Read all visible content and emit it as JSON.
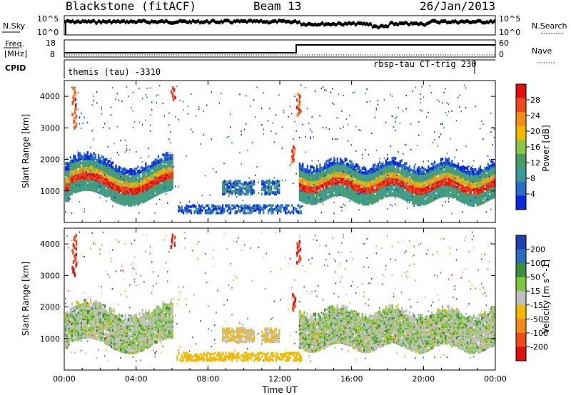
{
  "header": {
    "station": "Blackstone (fitACF)",
    "beam": "Beam 13",
    "date": "26/Jan/2013"
  },
  "nsky": {
    "label": "N.Sky",
    "tick_top": "10^5",
    "tick_bottom": "10^0",
    "right_label": "N.Search",
    "right_tick_top": "10^5",
    "right_tick_bottom": "10^0"
  },
  "freq": {
    "label_line1": "Freq.",
    "label_line2": "[MHz]",
    "tick_top": "18",
    "tick_bottom": "8",
    "right_label": "Nave",
    "right_tick_top": "60",
    "right_tick_bottom": "0"
  },
  "cpid": {
    "label": "CPID",
    "mode_left": "themis (tau) -3310",
    "mode_right": "rbsp-tau CT-trig 230"
  },
  "colors": {
    "power_scale": [
      "#0a2ae0",
      "#2b6cc4",
      "#3a9a9a",
      "#4a9e62",
      "#8bc640",
      "#f2b800",
      "#f58a1c",
      "#ef4a1e",
      "#e01010"
    ],
    "velocity_scale": [
      "#e01010",
      "#ef4a1e",
      "#f58a1c",
      "#f2b800",
      "#c0c0c0",
      "#7cc83a",
      "#3b8e3a",
      "#2b6cc4",
      "#1f3fb0"
    ]
  },
  "chart_data": [
    {
      "type": "heatmap",
      "title": "Power",
      "ylabel": "Slant Range [km]",
      "xlabel": "",
      "ylim": [
        0,
        4500
      ],
      "y_ticks": [
        1000,
        2000,
        3000,
        4000
      ],
      "x_ticks": [
        "00:00",
        "04:00",
        "08:00",
        "12:00",
        "16:00",
        "20:00",
        "00:00"
      ],
      "colorbar": {
        "label": "Power [dB]",
        "ticks": [
          "4",
          "8",
          "12",
          "16",
          "20",
          "24",
          "28"
        ],
        "range": [
          0,
          30
        ]
      }
    },
    {
      "type": "heatmap",
      "title": "Velocity",
      "ylabel": "Slant Range [km]",
      "xlabel": "Time UT",
      "ylim": [
        0,
        4500
      ],
      "y_ticks": [
        1000,
        2000,
        3000,
        4000
      ],
      "x_ticks": [
        "00:00",
        "04:00",
        "08:00",
        "12:00",
        "16:00",
        "20:00",
        "00:00"
      ],
      "colorbar": {
        "label": "Velocity [m s^-1]",
        "ticks": [
          "200",
          "100",
          "50",
          "15",
          "-15",
          "-50",
          "-100",
          "-200"
        ],
        "range": [
          -250,
          250
        ]
      }
    }
  ]
}
